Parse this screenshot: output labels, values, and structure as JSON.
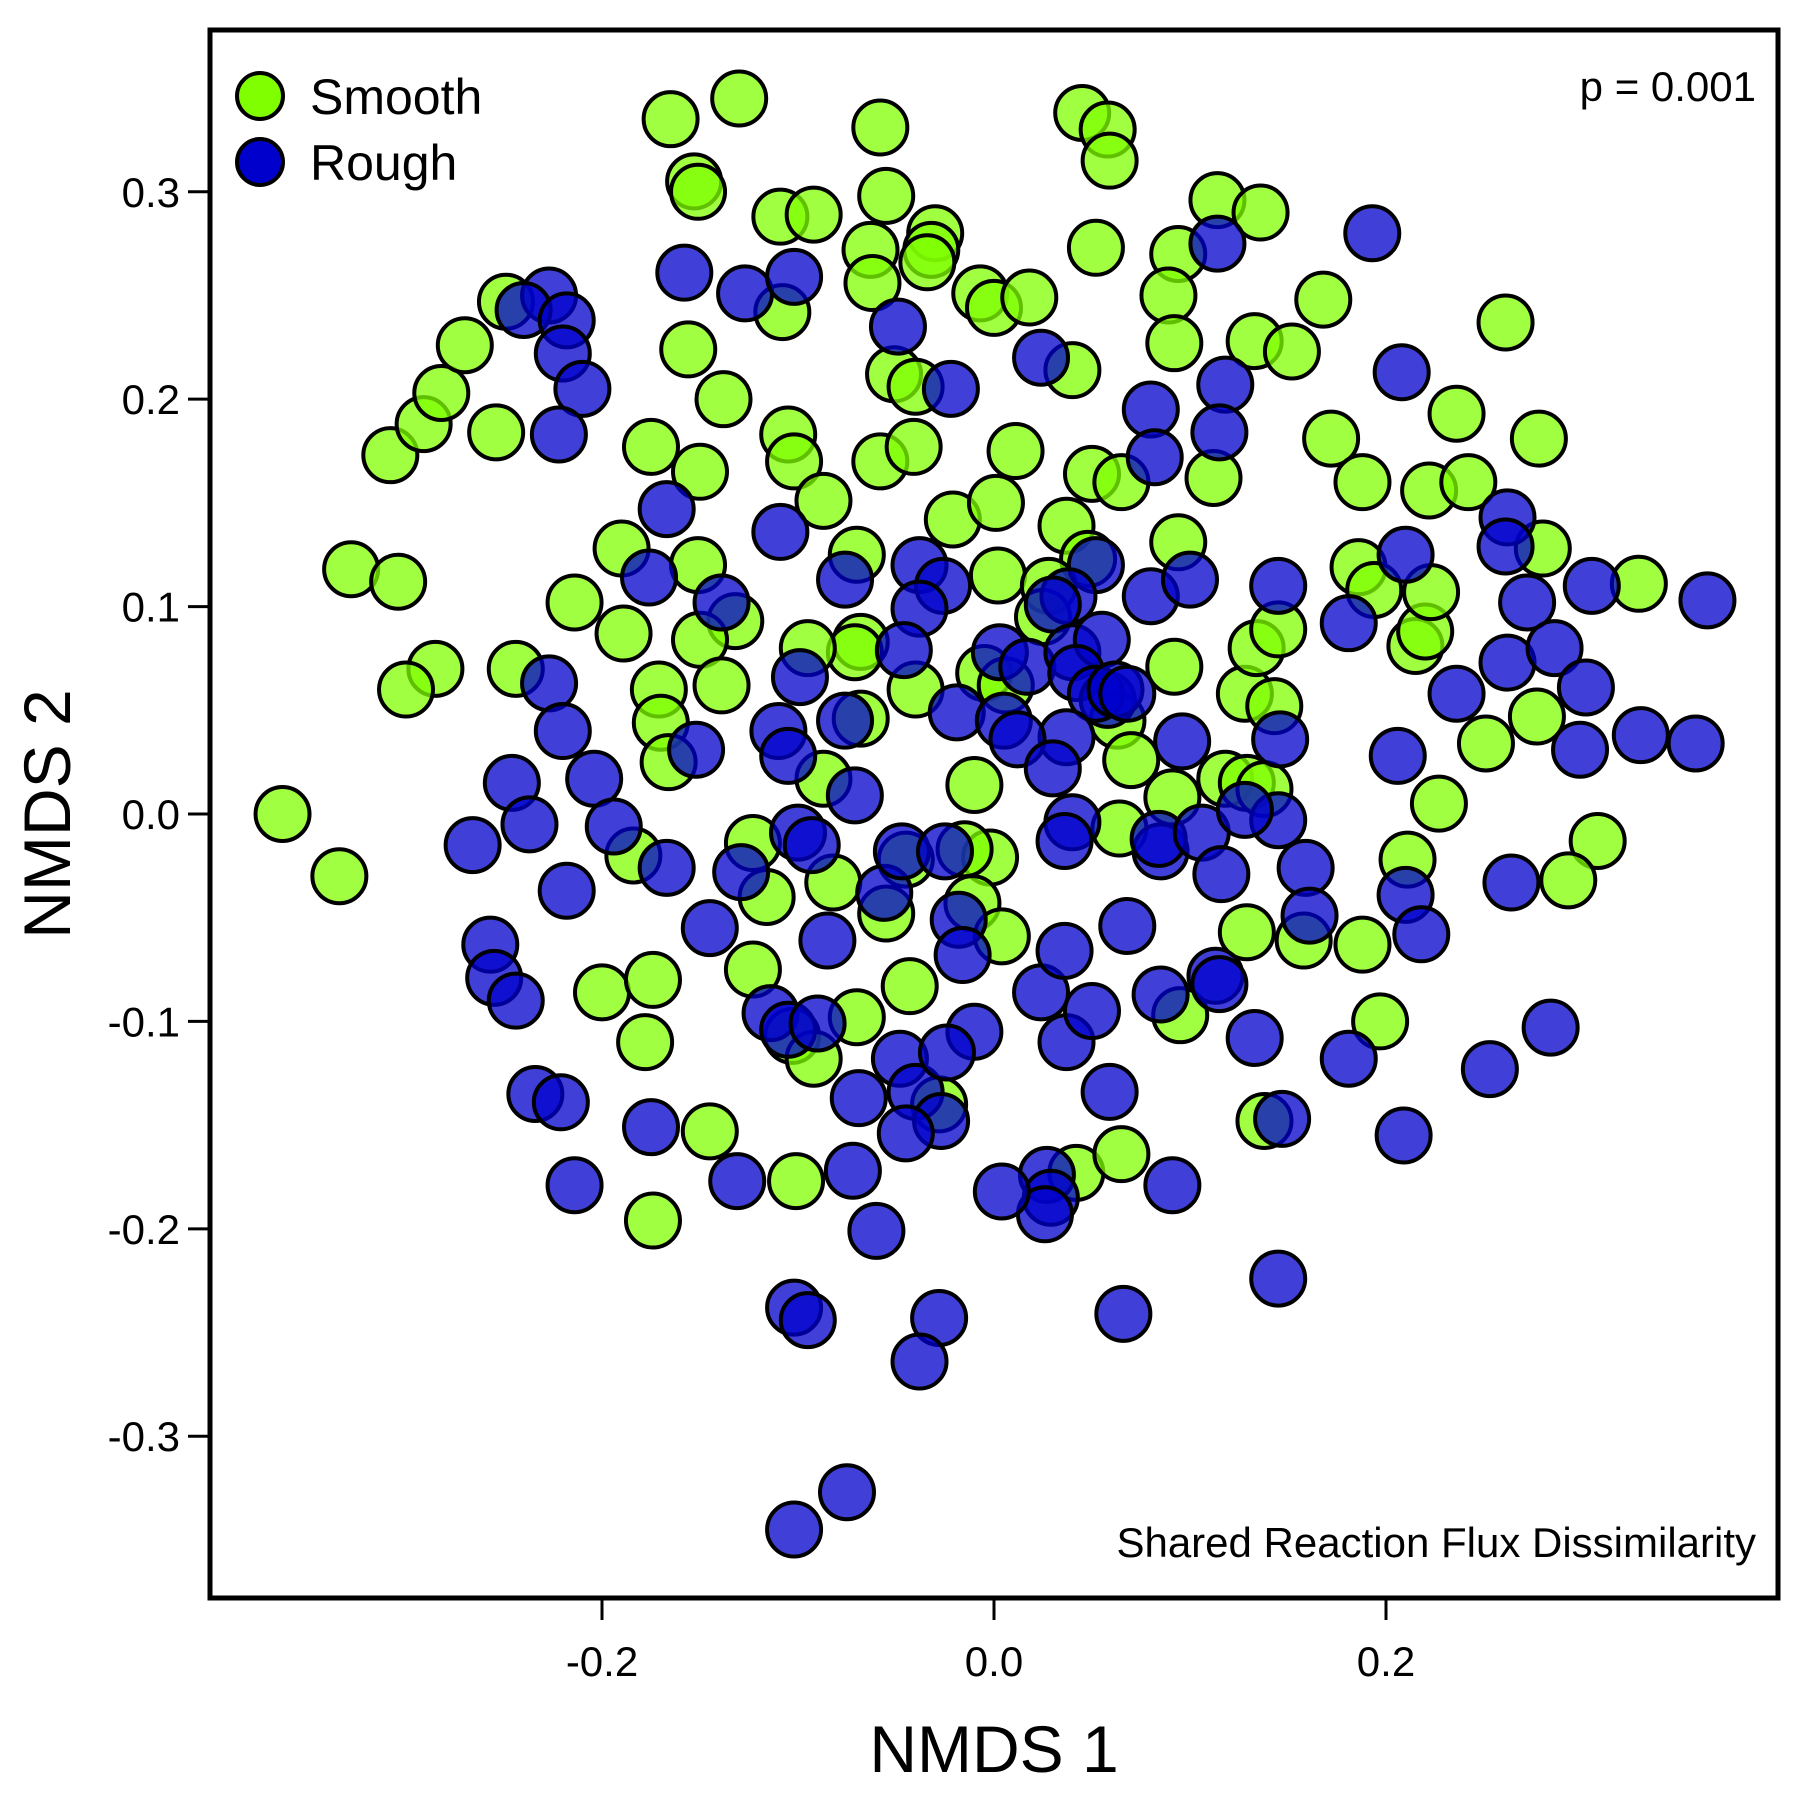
{
  "chart_data": {
    "type": "scatter",
    "title": "",
    "xlabel": "NMDS 1",
    "ylabel": "NMDS 2",
    "xlim": [
      -0.4,
      0.4
    ],
    "ylim": [
      -0.378,
      0.378
    ],
    "xticks": [
      -0.2,
      0.0,
      0.2
    ],
    "xtick_labels": [
      "-0.2",
      "0.0",
      "0.2"
    ],
    "yticks": [
      -0.3,
      -0.2,
      -0.1,
      0.0,
      0.1,
      0.2,
      0.3
    ],
    "ytick_labels": [
      "-0.3",
      "-0.2",
      "-0.1",
      "0.0",
      "0.1",
      "0.2",
      "0.3"
    ],
    "grid": false,
    "legend_position": "top-left",
    "annotations": {
      "p_value": "p = 0.001",
      "metric": "Shared Reaction Flux Dissimilarity"
    },
    "series": [
      {
        "name": "Smooth",
        "color": "#7FFF00",
        "points": [
          [
            -0.363,
            0.0
          ],
          [
            -0.334,
            -0.03
          ],
          [
            -0.328,
            0.118
          ],
          [
            -0.304,
            0.112
          ],
          [
            -0.308,
            0.173
          ],
          [
            -0.291,
            0.188
          ],
          [
            -0.282,
            0.203
          ],
          [
            -0.27,
            0.226
          ],
          [
            -0.254,
            0.184
          ],
          [
            -0.249,
            0.247
          ],
          [
            -0.244,
            0.07
          ],
          [
            -0.285,
            0.07
          ],
          [
            -0.3,
            0.06
          ],
          [
            -0.214,
            0.102
          ],
          [
            -0.19,
            0.128
          ],
          [
            -0.189,
            0.087
          ],
          [
            -0.175,
            0.177
          ],
          [
            -0.165,
            0.335
          ],
          [
            -0.153,
            0.305
          ],
          [
            -0.151,
            0.3
          ],
          [
            -0.156,
            0.224
          ],
          [
            -0.15,
            0.165
          ],
          [
            -0.151,
            0.12
          ],
          [
            -0.138,
            0.2
          ],
          [
            -0.132,
            0.093
          ],
          [
            -0.15,
            0.084
          ],
          [
            -0.139,
            0.062
          ],
          [
            -0.171,
            0.06
          ],
          [
            -0.17,
            0.044
          ],
          [
            -0.166,
            0.025
          ],
          [
            -0.184,
            -0.02
          ],
          [
            -0.2,
            -0.086
          ],
          [
            -0.174,
            -0.08
          ],
          [
            -0.178,
            -0.11
          ],
          [
            -0.145,
            -0.153
          ],
          [
            -0.174,
            -0.196
          ],
          [
            -0.13,
            0.345
          ],
          [
            -0.109,
            0.288
          ],
          [
            -0.092,
            0.289
          ],
          [
            -0.108,
            0.242
          ],
          [
            -0.105,
            0.183
          ],
          [
            -0.102,
            0.17
          ],
          [
            -0.087,
            0.151
          ],
          [
            -0.07,
            0.125
          ],
          [
            -0.068,
            0.083
          ],
          [
            -0.071,
            0.078
          ],
          [
            -0.095,
            0.08
          ],
          [
            -0.068,
            0.046
          ],
          [
            -0.04,
            0.06
          ],
          [
            -0.087,
            0.017
          ],
          [
            -0.123,
            -0.014
          ],
          [
            -0.116,
            -0.04
          ],
          [
            -0.082,
            -0.033
          ],
          [
            -0.055,
            -0.048
          ],
          [
            -0.045,
            -0.022
          ],
          [
            -0.123,
            -0.075
          ],
          [
            -0.103,
            -0.107
          ],
          [
            -0.092,
            -0.118
          ],
          [
            -0.07,
            -0.098
          ],
          [
            -0.043,
            -0.083
          ],
          [
            -0.101,
            -0.177
          ],
          [
            -0.058,
            0.331
          ],
          [
            -0.055,
            0.298
          ],
          [
            -0.063,
            0.272
          ],
          [
            -0.062,
            0.256
          ],
          [
            -0.051,
            0.212
          ],
          [
            -0.04,
            0.206
          ],
          [
            -0.058,
            0.17
          ],
          [
            -0.041,
            0.177
          ],
          [
            -0.03,
            0.28
          ],
          [
            -0.032,
            0.272
          ],
          [
            -0.034,
            0.266
          ],
          [
            -0.007,
            0.251
          ],
          [
            0.0,
            0.244
          ],
          [
            0.018,
            0.249
          ],
          [
            0.011,
            0.175
          ],
          [
            -0.021,
            0.142
          ],
          [
            0.001,
            0.15
          ],
          [
            0.002,
            0.115
          ],
          [
            -0.005,
            0.068
          ],
          [
            0.006,
            0.062
          ],
          [
            -0.01,
            0.014
          ],
          [
            -0.002,
            -0.021
          ],
          [
            -0.015,
            -0.017
          ],
          [
            -0.011,
            -0.043
          ],
          [
            0.004,
            -0.059
          ],
          [
            -0.028,
            -0.14
          ],
          [
            0.045,
            0.338
          ],
          [
            0.058,
            0.33
          ],
          [
            0.059,
            0.315
          ],
          [
            0.052,
            0.273
          ],
          [
            0.04,
            0.214
          ],
          [
            0.05,
            0.164
          ],
          [
            0.065,
            0.16
          ],
          [
            0.037,
            0.139
          ],
          [
            0.048,
            0.123
          ],
          [
            0.028,
            0.11
          ],
          [
            0.025,
            0.095
          ],
          [
            0.063,
            0.045
          ],
          [
            0.07,
            0.026
          ],
          [
            0.064,
            -0.007
          ],
          [
            0.042,
            -0.173
          ],
          [
            0.065,
            -0.164
          ],
          [
            0.094,
            0.27
          ],
          [
            0.089,
            0.25
          ],
          [
            0.092,
            0.227
          ],
          [
            0.114,
            0.296
          ],
          [
            0.136,
            0.29
          ],
          [
            0.133,
            0.228
          ],
          [
            0.152,
            0.223
          ],
          [
            0.112,
            0.162
          ],
          [
            0.094,
            0.131
          ],
          [
            0.092,
            0.071
          ],
          [
            0.128,
            0.058
          ],
          [
            0.118,
            0.017
          ],
          [
            0.129,
            0.015
          ],
          [
            0.138,
            0.012
          ],
          [
            0.134,
            0.08
          ],
          [
            0.145,
            0.089
          ],
          [
            0.143,
            0.052
          ],
          [
            0.091,
            0.008
          ],
          [
            0.129,
            -0.057
          ],
          [
            0.158,
            -0.061
          ],
          [
            0.095,
            -0.097
          ],
          [
            0.138,
            -0.148
          ],
          [
            0.168,
            0.248
          ],
          [
            0.172,
            0.181
          ],
          [
            0.188,
            0.16
          ],
          [
            0.186,
            0.119
          ],
          [
            0.194,
            0.108
          ],
          [
            0.215,
            0.081
          ],
          [
            0.22,
            0.088
          ],
          [
            0.223,
            0.107
          ],
          [
            0.222,
            0.156
          ],
          [
            0.242,
            0.16
          ],
          [
            0.227,
            0.005
          ],
          [
            0.211,
            -0.022
          ],
          [
            0.188,
            -0.063
          ],
          [
            0.197,
            -0.1
          ],
          [
            0.236,
            0.193
          ],
          [
            0.261,
            0.237
          ],
          [
            0.278,
            0.181
          ],
          [
            0.28,
            0.128
          ],
          [
            0.251,
            0.034
          ],
          [
            0.277,
            0.047
          ],
          [
            0.308,
            -0.013
          ],
          [
            0.293,
            -0.032
          ],
          [
            0.329,
            0.111
          ]
        ]
      },
      {
        "name": "Rough",
        "color": "#0000CC",
        "points": [
          [
            -0.266,
            -0.015
          ],
          [
            -0.246,
            0.015
          ],
          [
            -0.237,
            -0.005
          ],
          [
            -0.227,
            0.063
          ],
          [
            -0.22,
            0.04
          ],
          [
            -0.218,
            -0.037
          ],
          [
            -0.204,
            0.017
          ],
          [
            -0.194,
            -0.006
          ],
          [
            -0.257,
            -0.063
          ],
          [
            -0.255,
            -0.079
          ],
          [
            -0.244,
            -0.09
          ],
          [
            -0.234,
            -0.135
          ],
          [
            -0.221,
            -0.139
          ],
          [
            -0.214,
            -0.179
          ],
          [
            -0.175,
            -0.151
          ],
          [
            -0.227,
            0.25
          ],
          [
            -0.24,
            0.243
          ],
          [
            -0.218,
            0.238
          ],
          [
            -0.22,
            0.222
          ],
          [
            -0.21,
            0.205
          ],
          [
            -0.222,
            0.183
          ],
          [
            -0.167,
            0.147
          ],
          [
            -0.176,
            0.114
          ],
          [
            -0.139,
            0.102
          ],
          [
            -0.152,
            0.031
          ],
          [
            -0.167,
            -0.026
          ],
          [
            -0.145,
            -0.055
          ],
          [
            -0.129,
            -0.028
          ],
          [
            -0.11,
            0.04
          ],
          [
            -0.105,
            0.028
          ],
          [
            -0.1,
            -0.009
          ],
          [
            -0.093,
            -0.015
          ],
          [
            -0.114,
            -0.096
          ],
          [
            -0.105,
            -0.104
          ],
          [
            -0.09,
            -0.101
          ],
          [
            -0.131,
            -0.177
          ],
          [
            -0.102,
            -0.238
          ],
          [
            -0.095,
            -0.244
          ],
          [
            -0.158,
            0.261
          ],
          [
            -0.127,
            0.251
          ],
          [
            -0.102,
            0.259
          ],
          [
            -0.109,
            0.136
          ],
          [
            -0.076,
            0.113
          ],
          [
            -0.099,
            0.066
          ],
          [
            -0.076,
            0.045
          ],
          [
            -0.071,
            0.009
          ],
          [
            -0.085,
            -0.061
          ],
          [
            -0.069,
            -0.137
          ],
          [
            -0.072,
            -0.172
          ],
          [
            -0.06,
            -0.201
          ],
          [
            -0.075,
            -0.327
          ],
          [
            -0.102,
            -0.345
          ],
          [
            -0.049,
            0.235
          ],
          [
            -0.022,
            0.205
          ],
          [
            -0.038,
            0.12
          ],
          [
            -0.026,
            0.11
          ],
          [
            -0.038,
            0.099
          ],
          [
            -0.046,
            0.079
          ],
          [
            -0.019,
            0.049
          ],
          [
            -0.056,
            -0.038
          ],
          [
            -0.047,
            -0.018
          ],
          [
            -0.025,
            -0.018
          ],
          [
            -0.018,
            -0.051
          ],
          [
            -0.016,
            -0.068
          ],
          [
            -0.01,
            -0.105
          ],
          [
            -0.048,
            -0.118
          ],
          [
            -0.04,
            -0.134
          ],
          [
            -0.027,
            -0.148
          ],
          [
            -0.045,
            -0.154
          ],
          [
            -0.024,
            -0.115
          ],
          [
            -0.028,
            -0.243
          ],
          [
            -0.038,
            -0.264
          ],
          [
            0.024,
            0.22
          ],
          [
            0.052,
            0.12
          ],
          [
            0.038,
            0.105
          ],
          [
            0.03,
            0.101
          ],
          [
            0.003,
            0.078
          ],
          [
            0.017,
            0.071
          ],
          [
            0.04,
            0.078
          ],
          [
            0.055,
            0.084
          ],
          [
            0.042,
            0.068
          ],
          [
            0.058,
            0.055
          ],
          [
            0.052,
            0.058
          ],
          [
            0.062,
            0.06
          ],
          [
            0.068,
            0.058
          ],
          [
            0.037,
            0.037
          ],
          [
            0.005,
            0.045
          ],
          [
            0.012,
            0.036
          ],
          [
            0.03,
            0.022
          ],
          [
            0.04,
            -0.004
          ],
          [
            0.036,
            -0.013
          ],
          [
            0.024,
            -0.086
          ],
          [
            0.036,
            -0.066
          ],
          [
            0.037,
            -0.11
          ],
          [
            0.05,
            -0.095
          ],
          [
            0.059,
            -0.134
          ],
          [
            0.027,
            -0.174
          ],
          [
            0.029,
            -0.185
          ],
          [
            0.026,
            -0.193
          ],
          [
            0.004,
            -0.182
          ],
          [
            0.068,
            -0.054
          ],
          [
            0.066,
            -0.241
          ],
          [
            0.08,
            0.195
          ],
          [
            0.082,
            0.172
          ],
          [
            0.08,
            0.105
          ],
          [
            0.1,
            0.113
          ],
          [
            0.096,
            0.035
          ],
          [
            0.085,
            -0.018
          ],
          [
            0.084,
            -0.012
          ],
          [
            0.106,
            -0.009
          ],
          [
            0.116,
            -0.029
          ],
          [
            0.113,
            -0.078
          ],
          [
            0.115,
            -0.082
          ],
          [
            0.085,
            -0.087
          ],
          [
            0.091,
            -0.179
          ],
          [
            0.114,
            0.275
          ],
          [
            0.118,
            0.207
          ],
          [
            0.115,
            0.184
          ],
          [
            0.145,
            0.11
          ],
          [
            0.146,
            0.036
          ],
          [
            0.145,
            -0.003
          ],
          [
            0.128,
            0.002
          ],
          [
            0.159,
            -0.026
          ],
          [
            0.161,
            -0.049
          ],
          [
            0.133,
            -0.108
          ],
          [
            0.147,
            -0.147
          ],
          [
            0.145,
            -0.224
          ],
          [
            0.193,
            0.28
          ],
          [
            0.208,
            0.213
          ],
          [
            0.181,
            0.092
          ],
          [
            0.21,
            0.125
          ],
          [
            0.206,
            0.028
          ],
          [
            0.21,
            -0.039
          ],
          [
            0.218,
            -0.058
          ],
          [
            0.181,
            -0.118
          ],
          [
            0.209,
            -0.155
          ],
          [
            0.236,
            0.058
          ],
          [
            0.262,
            0.143
          ],
          [
            0.261,
            0.129
          ],
          [
            0.272,
            0.102
          ],
          [
            0.262,
            0.073
          ],
          [
            0.264,
            -0.033
          ],
          [
            0.253,
            -0.123
          ],
          [
            0.286,
            0.08
          ],
          [
            0.302,
            0.061
          ],
          [
            0.299,
            0.031
          ],
          [
            0.305,
            0.11
          ],
          [
            0.33,
            0.038
          ],
          [
            0.358,
            0.034
          ],
          [
            0.364,
            0.103
          ],
          [
            0.284,
            -0.103
          ]
        ]
      }
    ]
  }
}
